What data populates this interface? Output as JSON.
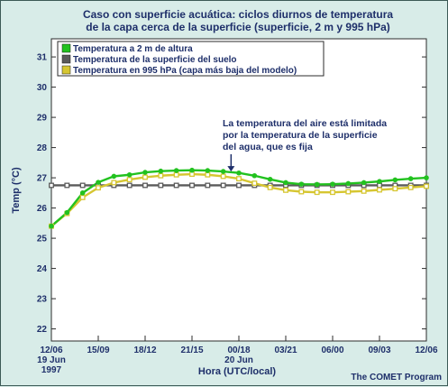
{
  "chart_data": {
    "type": "line",
    "title_lines": [
      "Caso con superficie acuática: ciclos diurnos de temperatura",
      "de la capa cerca de la superficie (superficie, 2 m y 995 hPa)"
    ],
    "xlabel": "Hora (UTC/local)",
    "ylabel": "Temp (°C)",
    "ylim": [
      21.6,
      31.6
    ],
    "yticks": [
      22,
      23,
      24,
      25,
      26,
      27,
      28,
      29,
      30,
      31
    ],
    "xlim": [
      0,
      24
    ],
    "xticks": [
      {
        "x": 0,
        "lines": [
          "12/06",
          "19 Jun",
          "1997"
        ]
      },
      {
        "x": 3,
        "lines": [
          "15/09"
        ]
      },
      {
        "x": 6,
        "lines": [
          "18/12"
        ]
      },
      {
        "x": 9,
        "lines": [
          "21/15"
        ]
      },
      {
        "x": 12,
        "lines": [
          "00/18",
          "20 Jun"
        ]
      },
      {
        "x": 15,
        "lines": [
          "03/21"
        ]
      },
      {
        "x": 18,
        "lines": [
          "06/00"
        ]
      },
      {
        "x": 21,
        "lines": [
          "09/03"
        ]
      },
      {
        "x": 24,
        "lines": [
          "12/06"
        ]
      }
    ],
    "x": [
      0,
      1,
      2,
      3,
      4,
      5,
      6,
      7,
      8,
      9,
      10,
      11,
      12,
      13,
      14,
      15,
      16,
      17,
      18,
      19,
      20,
      21,
      22,
      23,
      24
    ],
    "series": [
      {
        "name": "Temperatura a 2 m de altura",
        "color": "#22c21f",
        "marker": "circle",
        "values": [
          25.4,
          25.85,
          26.5,
          26.85,
          27.05,
          27.1,
          27.18,
          27.22,
          27.24,
          27.25,
          27.24,
          27.21,
          27.16,
          27.07,
          26.95,
          26.84,
          26.79,
          26.78,
          26.79,
          26.81,
          26.84,
          26.88,
          26.93,
          26.97,
          27.0
        ]
      },
      {
        "name": "Temperatura de la superficie del suelo",
        "color": "#5a5a5a",
        "marker": "square",
        "values": [
          26.75,
          26.75,
          26.75,
          26.75,
          26.75,
          26.75,
          26.75,
          26.75,
          26.75,
          26.75,
          26.75,
          26.75,
          26.75,
          26.75,
          26.75,
          26.75,
          26.75,
          26.75,
          26.75,
          26.75,
          26.75,
          26.75,
          26.75,
          26.75,
          26.75
        ]
      },
      {
        "name": "Temperatura en 995 hPa (capa más baja del modelo)",
        "color": "#d6c631",
        "marker": "square",
        "values": [
          25.4,
          25.82,
          26.35,
          26.67,
          26.84,
          26.94,
          27.02,
          27.07,
          27.1,
          27.12,
          27.1,
          27.05,
          26.97,
          26.82,
          26.68,
          26.59,
          26.54,
          26.52,
          26.52,
          26.54,
          26.56,
          26.6,
          26.64,
          26.68,
          26.72
        ]
      }
    ],
    "legend_position": "top-left",
    "grid": false,
    "annotation": {
      "lines": [
        "La temperatura del aire está limitada",
        "por la temperatura de la superficie",
        "del agua, que es fija"
      ],
      "arrow_x": 11.5,
      "arrow_target_y": 27.18
    },
    "credit": "The COMET Program"
  }
}
